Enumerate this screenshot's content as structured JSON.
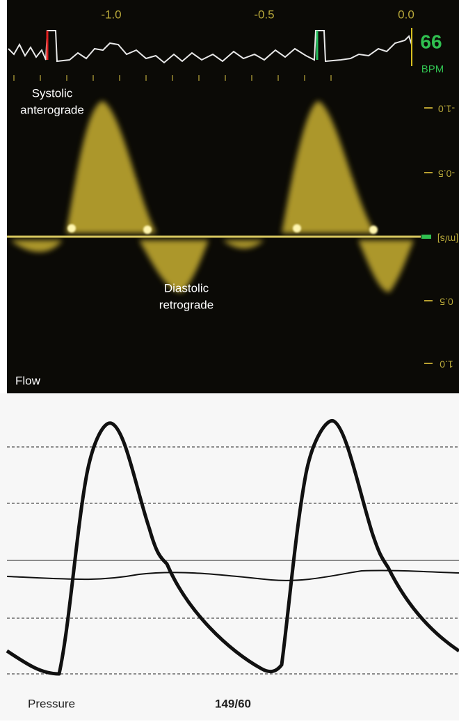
{
  "time_axis": {
    "labels": [
      "-1.0",
      "-0.5",
      "0.0"
    ]
  },
  "heart_rate": {
    "value": "66",
    "unit": "BPM"
  },
  "annotations": {
    "systolic": [
      "Systolic",
      "anterograde"
    ],
    "diastolic": [
      "Diastolic",
      "retrograde"
    ]
  },
  "velocity_axis": {
    "labels": [
      "-1.0",
      "-0.5",
      "[m/s]",
      "0.5",
      "1.0"
    ]
  },
  "panels": {
    "flow": "Flow",
    "pressure": "Pressure"
  },
  "blood_pressure": "149/60"
}
